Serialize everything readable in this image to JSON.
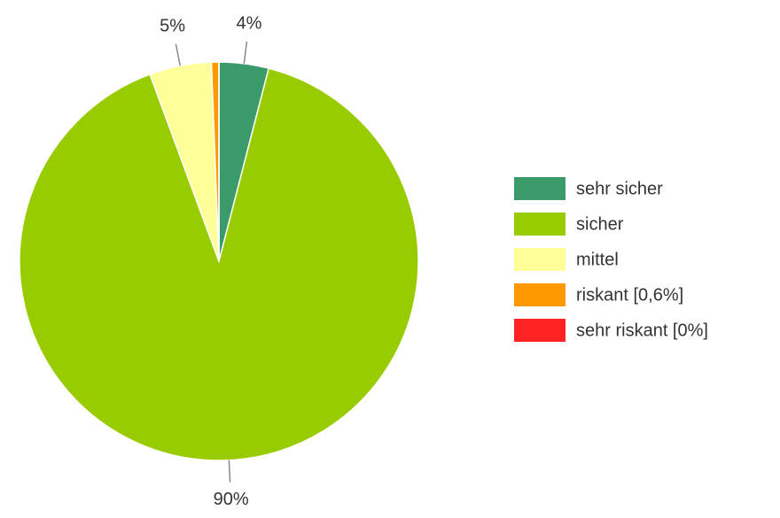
{
  "chart_data": {
    "type": "pie",
    "categories": [
      "sehr sicher",
      "sicher",
      "mittel",
      "riskant [0,6%]",
      "sehr riskant [0%]"
    ],
    "values": [
      4,
      90,
      5,
      0.6,
      0
    ],
    "value_labels": [
      "4%",
      "90%",
      "5%",
      null,
      null
    ],
    "colors": [
      "#3a9a6a",
      "#99cc00",
      "#ffff99",
      "#ff9900",
      "#ff2222"
    ],
    "legend": "right"
  }
}
